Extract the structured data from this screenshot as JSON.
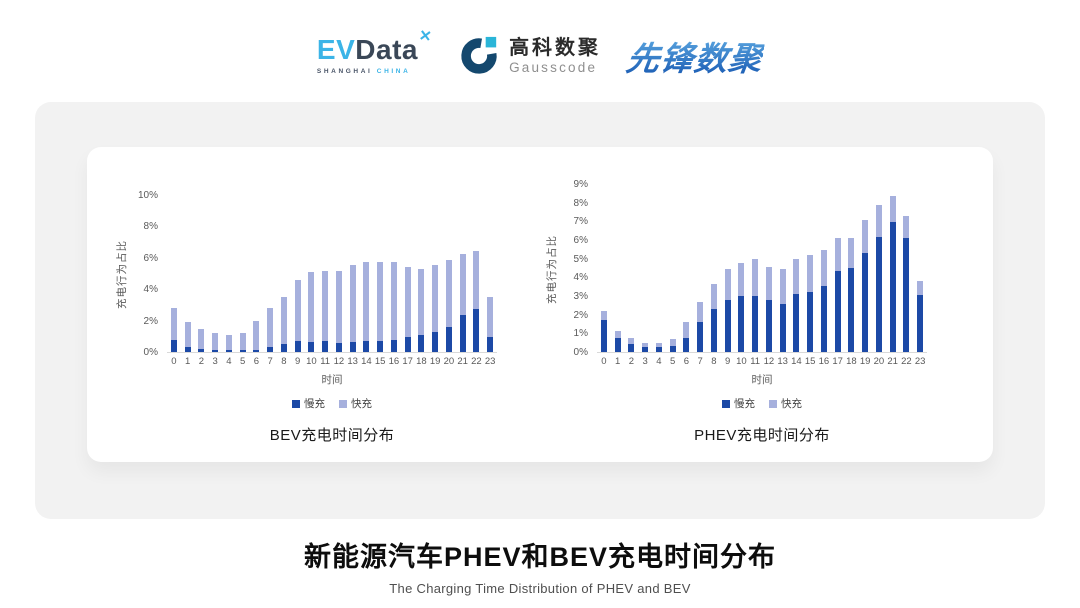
{
  "header": {
    "logos": {
      "evdata": {
        "part1": "EV",
        "part2": "Data",
        "mark": "✕",
        "sub1": "SHANGHAI",
        "sub2": "CHINA",
        "color_cyan": "#3bb4e7",
        "color_dark": "#3a4757"
      },
      "gausscode": {
        "cn": "高科数聚",
        "en": "Gausscode",
        "color_dark": "#14486e",
        "color_cyan": "#2ab5d8"
      },
      "xianfeng": {
        "text": "先锋数聚",
        "color_top": "#63b0e6",
        "color_bottom": "#1c5eb5"
      }
    }
  },
  "chart_data": [
    {
      "type": "bar",
      "stacked": true,
      "title": "BEV充电时间分布",
      "xlabel": "时间",
      "ylabel": "充电行为占比",
      "ylim": [
        0,
        10
      ],
      "ytick_step": 2,
      "ytick_format": "percent",
      "grid": false,
      "legend_position": "bottom",
      "categories": [
        "0",
        "1",
        "2",
        "3",
        "4",
        "5",
        "6",
        "7",
        "8",
        "9",
        "10",
        "11",
        "12",
        "13",
        "14",
        "15",
        "16",
        "17",
        "18",
        "19",
        "20",
        "21",
        "22",
        "23"
      ],
      "series": [
        {
          "name": "慢充",
          "color": "#1c49a6",
          "values": [
            0.75,
            0.35,
            0.2,
            0.1,
            0.1,
            0.1,
            0.15,
            0.35,
            0.5,
            0.7,
            0.65,
            0.7,
            0.6,
            0.65,
            0.7,
            0.7,
            0.8,
            0.95,
            1.1,
            1.3,
            1.6,
            2.4,
            2.75,
            0.95
          ]
        },
        {
          "name": "快充",
          "color": "#a6b0dd",
          "values": [
            2.1,
            1.55,
            1.3,
            1.1,
            1.0,
            1.1,
            1.85,
            2.45,
            3.05,
            3.9,
            4.5,
            4.5,
            4.6,
            4.95,
            5.1,
            5.05,
            5.0,
            4.5,
            4.2,
            4.25,
            4.3,
            3.9,
            3.75,
            2.6
          ]
        }
      ]
    },
    {
      "type": "bar",
      "stacked": true,
      "title": "PHEV充电时间分布",
      "xlabel": "时间",
      "ylabel": "充电行为占比",
      "ylim": [
        0,
        9
      ],
      "ytick_step": 1,
      "ytick_format": "percent",
      "grid": false,
      "legend_position": "bottom",
      "categories": [
        "0",
        "1",
        "2",
        "3",
        "4",
        "5",
        "6",
        "7",
        "8",
        "9",
        "10",
        "11",
        "12",
        "13",
        "14",
        "15",
        "16",
        "17",
        "18",
        "19",
        "20",
        "21",
        "22",
        "23"
      ],
      "series": [
        {
          "name": "慢充",
          "color": "#1c49a6",
          "values": [
            1.75,
            0.75,
            0.45,
            0.25,
            0.25,
            0.3,
            0.75,
            1.6,
            2.3,
            2.8,
            3.0,
            3.0,
            2.8,
            2.6,
            3.1,
            3.25,
            3.55,
            4.35,
            4.55,
            5.35,
            6.2,
            7.0,
            6.15,
            3.05
          ]
        },
        {
          "name": "快充",
          "color": "#a6b0dd",
          "values": [
            0.45,
            0.4,
            0.3,
            0.25,
            0.25,
            0.4,
            0.85,
            1.1,
            1.35,
            1.7,
            1.8,
            2.0,
            1.8,
            1.85,
            1.9,
            2.0,
            1.95,
            1.8,
            1.6,
            1.75,
            1.7,
            1.4,
            1.2,
            0.8
          ]
        }
      ]
    }
  ],
  "footer": {
    "title": "新能源汽车PHEV和BEV充电时间分布",
    "subtitle": "The Charging Time Distribution of PHEV and BEV"
  }
}
